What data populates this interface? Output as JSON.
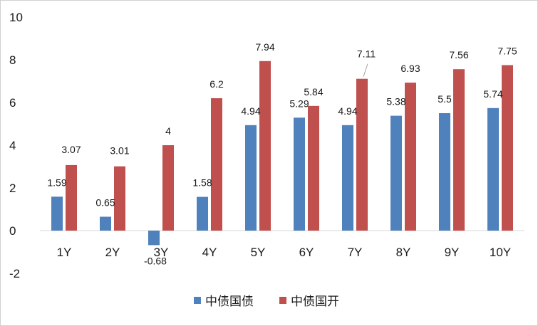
{
  "chart_data": {
    "type": "bar",
    "title": "",
    "xlabel": "",
    "ylabel": "",
    "ylim": [
      -2,
      10
    ],
    "yticks": [
      -2,
      0,
      2,
      4,
      6,
      8,
      10
    ],
    "grid": false,
    "legend_position": "bottom",
    "categories": [
      "1Y",
      "2Y",
      "3Y",
      "4Y",
      "5Y",
      "6Y",
      "7Y",
      "8Y",
      "9Y",
      "10Y"
    ],
    "series": [
      {
        "name": "中债国债",
        "color": "#4F81BD",
        "values": [
          1.59,
          0.65,
          -0.68,
          1.58,
          4.94,
          5.29,
          4.94,
          5.38,
          5.5,
          5.74
        ],
        "labels": [
          "1.59",
          "0.65",
          "-0.68",
          "1.58",
          "4.94",
          "5.29",
          "4.94",
          "5.38",
          "5.5",
          "5.74"
        ]
      },
      {
        "name": "中债国开",
        "color": "#C0504D",
        "values": [
          3.07,
          3.01,
          4,
          6.2,
          7.94,
          5.84,
          7.11,
          6.93,
          7.56,
          7.75
        ],
        "labels": [
          "3.07",
          "3.01",
          "4",
          "6.2",
          "7.94",
          "5.84",
          "7.11",
          "6.93",
          "7.56",
          "7.75"
        ]
      }
    ]
  }
}
